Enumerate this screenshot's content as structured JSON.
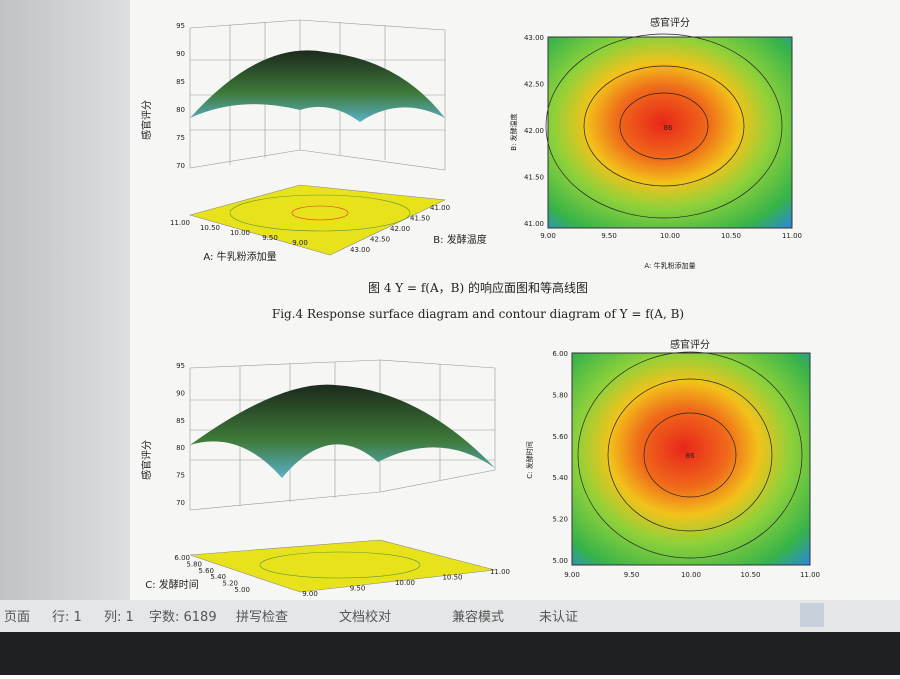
{
  "figure4": {
    "surface": {
      "z_label": "感官评分",
      "z_ticks": [
        "95",
        "90",
        "85",
        "80",
        "75",
        "70"
      ],
      "a_label": "A: 牛乳粉添加量",
      "a_ticks": [
        "11.00",
        "10.50",
        "10.00",
        "9.50",
        "9.00"
      ],
      "b_label": "B: 发酵温度",
      "b_ticks": [
        "41.00",
        "41.50",
        "42.00",
        "42.50",
        "43.00"
      ]
    },
    "contour": {
      "title": "感官评分",
      "y_label": "B: 发酵温度",
      "y_ticks": [
        "43.00",
        "42.50",
        "42.00",
        "41.50",
        "41.00"
      ],
      "x_label": "A: 牛乳粉添加量",
      "x_ticks": [
        "9.00",
        "9.50",
        "10.00",
        "10.50",
        "11.00"
      ],
      "center_label": "86"
    },
    "caption_cn": "图 4 Y = f(A，B) 的响应面图和等高线图",
    "caption_en": "Fig.4 Response surface diagram and contour diagram of Y = f(A, B)"
  },
  "figure5": {
    "surface": {
      "z_label": "感官评分",
      "z_ticks": [
        "95",
        "90",
        "85",
        "80",
        "75",
        "70"
      ],
      "c_label": "C: 发酵时间",
      "c_ticks": [
        "6.00",
        "5.80",
        "5.60",
        "5.40",
        "5.20",
        "5.00"
      ],
      "a_ticks": [
        "9.00",
        "9.50",
        "10.00",
        "10.50",
        "11.00"
      ]
    },
    "contour": {
      "title": "感官评分",
      "y_label": "C: 发酵时间",
      "y_ticks": [
        "6.00",
        "5.80",
        "5.60",
        "5.40",
        "5.20",
        "5.00"
      ],
      "x_ticks": [
        "9.00",
        "9.50",
        "10.00",
        "10.50",
        "11.00"
      ],
      "center_label": "86"
    }
  },
  "status_bar": {
    "items": [
      "页面",
      "行: 1",
      "列: 1",
      "字数: 6189",
      "拼写检查",
      "文档校对",
      "兼容模式",
      "未认证"
    ]
  }
}
